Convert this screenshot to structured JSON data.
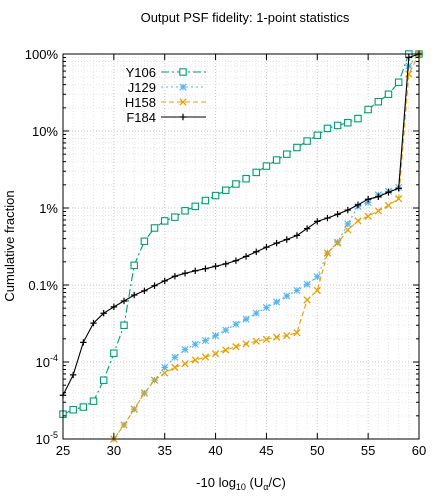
{
  "chart_data": {
    "type": "line",
    "title": "Output PSF fidelity: 1-point statistics",
    "xlabel": {
      "base": "-10 log",
      "sub1": "10",
      "mid": " (U",
      "sub2": "α",
      "end": "/C)"
    },
    "ylabel": "Cumulative fraction",
    "xlim": [
      25,
      60
    ],
    "ylim": [
      1e-05,
      1
    ],
    "yscale": "log",
    "grid": true,
    "legend_position": "top-left",
    "x_ticks": [
      {
        "value": 25,
        "label": "25"
      },
      {
        "value": 30,
        "label": "30"
      },
      {
        "value": 35,
        "label": "35"
      },
      {
        "value": 40,
        "label": "40"
      },
      {
        "value": 45,
        "label": "45"
      },
      {
        "value": 50,
        "label": "50"
      },
      {
        "value": 55,
        "label": "55"
      },
      {
        "value": 60,
        "label": "60"
      }
    ],
    "y_ticks": [
      {
        "value": 1,
        "label": "100%"
      },
      {
        "value": 0.1,
        "label": "10%"
      },
      {
        "value": 0.01,
        "label": "1%"
      },
      {
        "value": 0.001,
        "label": "0.1%"
      },
      {
        "value": 0.0001,
        "label": "10",
        "sup": "-4"
      },
      {
        "value": 1e-05,
        "label": "10",
        "sup": "-5"
      }
    ],
    "series": [
      {
        "name": "Y106",
        "color": "#009e73",
        "marker": "square",
        "dash": "8,3,2,3",
        "x": [
          25,
          26,
          27,
          28,
          29,
          30,
          31,
          32,
          33,
          34,
          35,
          36,
          37,
          38,
          39,
          40,
          41,
          42,
          43,
          44,
          45,
          46,
          47,
          48,
          49,
          50,
          51,
          52,
          53,
          54,
          55,
          56,
          57,
          58,
          59,
          60
        ],
        "y": [
          2.1e-05,
          2.4e-05,
          2.6e-05,
          3.1e-05,
          5.8e-05,
          0.00013,
          0.0003,
          0.0018,
          0.0037,
          0.0055,
          0.0068,
          0.0076,
          0.0092,
          0.0105,
          0.0125,
          0.0145,
          0.017,
          0.0205,
          0.024,
          0.029,
          0.035,
          0.042,
          0.05,
          0.061,
          0.074,
          0.088,
          0.108,
          0.118,
          0.128,
          0.145,
          0.19,
          0.24,
          0.3,
          0.43,
          1,
          1
        ]
      },
      {
        "name": "J129",
        "color": "#56b4e9",
        "marker": "star",
        "dash": "2,3",
        "x": [
          30,
          31,
          32,
          33,
          34,
          35,
          36,
          37,
          38,
          39,
          40,
          41,
          42,
          43,
          44,
          45,
          46,
          47,
          48,
          49,
          50,
          51,
          52,
          53,
          54,
          55,
          56,
          57,
          58,
          59,
          60
        ],
        "y": [
          1e-05,
          1.52e-05,
          2.44e-05,
          3.95e-05,
          5.8e-05,
          8.5e-05,
          0.000115,
          0.000145,
          0.00017,
          0.00019,
          0.00022,
          0.00026,
          0.00031,
          0.00036,
          0.00043,
          0.00051,
          0.0006,
          0.00072,
          0.00085,
          0.00102,
          0.00128,
          0.0026,
          0.0036,
          0.0062,
          0.0105,
          0.0118,
          0.0148,
          0.0165,
          0.0185,
          0.7,
          1
        ]
      },
      {
        "name": "H158",
        "color": "#e69f00",
        "marker": "cross",
        "dash": "5,3",
        "x": [
          30,
          31,
          32,
          33,
          34,
          35,
          36,
          37,
          38,
          39,
          40,
          41,
          42,
          43,
          44,
          45,
          46,
          47,
          48,
          49,
          50,
          51,
          52,
          53,
          54,
          55,
          56,
          57,
          58,
          59,
          60
        ],
        "y": [
          1e-05,
          1.52e-05,
          2.44e-05,
          3.95e-05,
          5.8e-05,
          7.2e-05,
          8.5e-05,
          9.5e-05,
          0.000106,
          0.000116,
          0.000128,
          0.000143,
          0.000158,
          0.000172,
          0.000186,
          0.000197,
          0.00021,
          0.00022,
          0.00024,
          0.00064,
          0.00085,
          0.0026,
          0.0035,
          0.0052,
          0.0068,
          0.0078,
          0.0092,
          0.0108,
          0.0132,
          0.55,
          1
        ]
      },
      {
        "name": "F184",
        "color": "#000000",
        "marker": "plus",
        "dash": "",
        "x": [
          25,
          26,
          27,
          28,
          29,
          30,
          31,
          32,
          33,
          34,
          35,
          36,
          37,
          38,
          39,
          40,
          41,
          42,
          43,
          44,
          45,
          46,
          47,
          48,
          49,
          50,
          51,
          52,
          53,
          54,
          55,
          56,
          57,
          58,
          59,
          60
        ],
        "y": [
          3.7e-05,
          6.8e-05,
          0.00018,
          0.00032,
          0.00043,
          0.00052,
          0.00062,
          0.00074,
          0.00084,
          0.00098,
          0.00113,
          0.0013,
          0.00142,
          0.00153,
          0.00163,
          0.00175,
          0.00188,
          0.00207,
          0.00235,
          0.0027,
          0.0031,
          0.0035,
          0.0039,
          0.0044,
          0.0054,
          0.0067,
          0.0074,
          0.0083,
          0.0094,
          0.011,
          0.013,
          0.014,
          0.016,
          0.018,
          0.9,
          1
        ]
      }
    ]
  }
}
